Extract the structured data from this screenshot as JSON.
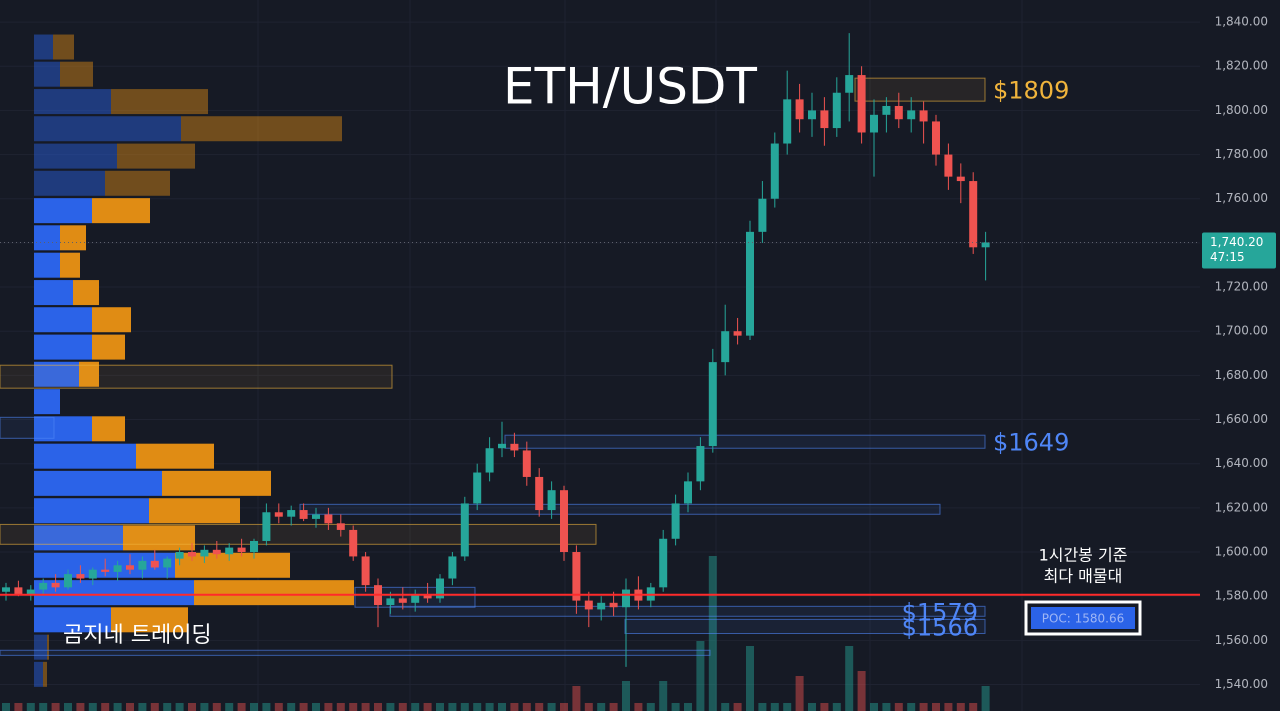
{
  "chart_data": {
    "type": "candlestick",
    "title": "ETH/USDT",
    "ylim": [
      1528,
      1850
    ],
    "yticks": [
      {
        "value": 1540,
        "label": "1,540.00"
      },
      {
        "value": 1560,
        "label": "1,560.00"
      },
      {
        "value": 1580,
        "label": "1,580.00"
      },
      {
        "value": 1600,
        "label": "1,600.00"
      },
      {
        "value": 1620,
        "label": "1,620.00"
      },
      {
        "value": 1640,
        "label": "1,640.00"
      },
      {
        "value": 1660,
        "label": "1,660.00"
      },
      {
        "value": 1680,
        "label": "1,680.00"
      },
      {
        "value": 1700,
        "label": "1,700.00"
      },
      {
        "value": 1720,
        "label": "1,720.00"
      },
      {
        "value": 1740,
        "label": "1,740.00"
      },
      {
        "value": 1760,
        "label": "1,760.00"
      },
      {
        "value": 1780,
        "label": "1,780.00"
      },
      {
        "value": 1800,
        "label": "1,800.00"
      },
      {
        "value": 1820,
        "label": "1,820.00"
      },
      {
        "value": 1840,
        "label": "1,840.00"
      }
    ],
    "grid": true,
    "up_color": "#26a69a",
    "down_color": "#ef5350",
    "ohlc": [
      [
        1582,
        1586,
        1578,
        1584
      ],
      [
        1584,
        1587,
        1580,
        1581
      ],
      [
        1581,
        1585,
        1578,
        1583
      ],
      [
        1583,
        1588,
        1581,
        1586
      ],
      [
        1586,
        1590,
        1582,
        1584
      ],
      [
        1584,
        1592,
        1583,
        1590
      ],
      [
        1590,
        1594,
        1586,
        1588
      ],
      [
        1588,
        1593,
        1585,
        1592
      ],
      [
        1592,
        1597,
        1589,
        1591
      ],
      [
        1591,
        1596,
        1587,
        1594
      ],
      [
        1594,
        1599,
        1590,
        1592
      ],
      [
        1592,
        1598,
        1588,
        1596
      ],
      [
        1596,
        1601,
        1592,
        1593
      ],
      [
        1593,
        1598,
        1588,
        1597
      ],
      [
        1597,
        1602,
        1594,
        1600
      ],
      [
        1600,
        1604,
        1596,
        1598
      ],
      [
        1598,
        1603,
        1595,
        1601
      ],
      [
        1601,
        1605,
        1597,
        1599
      ],
      [
        1599,
        1604,
        1596,
        1602
      ],
      [
        1602,
        1606,
        1598,
        1600
      ],
      [
        1600,
        1606,
        1597,
        1605
      ],
      [
        1605,
        1622,
        1603,
        1618
      ],
      [
        1618,
        1622,
        1613,
        1616
      ],
      [
        1616,
        1621,
        1612,
        1619
      ],
      [
        1619,
        1622,
        1614,
        1615
      ],
      [
        1615,
        1620,
        1611,
        1617
      ],
      [
        1617,
        1620,
        1610,
        1613
      ],
      [
        1613,
        1617,
        1607,
        1610
      ],
      [
        1610,
        1612,
        1596,
        1598
      ],
      [
        1598,
        1600,
        1582,
        1585
      ],
      [
        1585,
        1588,
        1566,
        1576
      ],
      [
        1576,
        1582,
        1572,
        1579
      ],
      [
        1579,
        1584,
        1574,
        1577
      ],
      [
        1577,
        1583,
        1573,
        1581
      ],
      [
        1581,
        1586,
        1577,
        1579
      ],
      [
        1579,
        1590,
        1577,
        1588
      ],
      [
        1588,
        1600,
        1585,
        1598
      ],
      [
        1598,
        1625,
        1596,
        1622
      ],
      [
        1622,
        1640,
        1619,
        1636
      ],
      [
        1636,
        1652,
        1632,
        1647
      ],
      [
        1647,
        1659,
        1643,
        1649
      ],
      [
        1649,
        1654,
        1643,
        1646
      ],
      [
        1646,
        1650,
        1630,
        1634
      ],
      [
        1634,
        1638,
        1616,
        1619
      ],
      [
        1619,
        1632,
        1615,
        1628
      ],
      [
        1628,
        1630,
        1596,
        1600
      ],
      [
        1600,
        1603,
        1572,
        1578
      ],
      [
        1578,
        1582,
        1566,
        1574
      ],
      [
        1574,
        1580,
        1569,
        1577
      ],
      [
        1577,
        1582,
        1571,
        1575
      ],
      [
        1575,
        1588,
        1548,
        1583
      ],
      [
        1583,
        1589,
        1574,
        1578
      ],
      [
        1578,
        1586,
        1575,
        1584
      ],
      [
        1584,
        1610,
        1582,
        1606
      ],
      [
        1606,
        1626,
        1603,
        1622
      ],
      [
        1622,
        1636,
        1618,
        1632
      ],
      [
        1632,
        1652,
        1628,
        1648
      ],
      [
        1648,
        1692,
        1645,
        1686
      ],
      [
        1686,
        1712,
        1680,
        1700
      ],
      [
        1700,
        1706,
        1694,
        1698
      ],
      [
        1698,
        1750,
        1696,
        1745
      ],
      [
        1745,
        1768,
        1740,
        1760
      ],
      [
        1760,
        1790,
        1756,
        1785
      ],
      [
        1785,
        1818,
        1780,
        1805
      ],
      [
        1805,
        1812,
        1790,
        1796
      ],
      [
        1796,
        1808,
        1788,
        1800
      ],
      [
        1800,
        1806,
        1784,
        1792
      ],
      [
        1792,
        1815,
        1788,
        1808
      ],
      [
        1808,
        1835,
        1795,
        1816
      ],
      [
        1816,
        1820,
        1785,
        1790
      ],
      [
        1790,
        1805,
        1770,
        1798
      ],
      [
        1798,
        1806,
        1790,
        1802
      ],
      [
        1802,
        1808,
        1792,
        1796
      ],
      [
        1796,
        1806,
        1790,
        1800
      ],
      [
        1800,
        1804,
        1785,
        1795
      ],
      [
        1795,
        1798,
        1775,
        1780
      ],
      [
        1780,
        1785,
        1764,
        1770
      ],
      [
        1770,
        1776,
        1758,
        1768
      ],
      [
        1768,
        1772,
        1735,
        1738
      ],
      [
        1738,
        1745,
        1723,
        1740.2
      ]
    ],
    "volume": [
      8,
      8,
      8,
      8,
      8,
      8,
      8,
      8,
      8,
      8,
      8,
      8,
      8,
      8,
      8,
      8,
      8,
      8,
      8,
      8,
      8,
      8,
      8,
      8,
      8,
      8,
      8,
      8,
      8,
      8,
      8,
      8,
      8,
      8,
      8,
      8,
      8,
      8,
      8,
      8,
      8,
      8,
      8,
      8,
      8,
      8,
      25,
      8,
      8,
      8,
      30,
      8,
      8,
      30,
      8,
      8,
      70,
      155,
      8,
      8,
      65,
      8,
      8,
      8,
      35,
      8,
      8,
      8,
      65,
      40,
      8,
      8,
      8,
      8,
      8,
      8,
      8,
      8,
      8,
      25
    ],
    "volume_profile": {
      "prices": [
        1828.7,
        1816.4,
        1804.0,
        1791.7,
        1779.3,
        1767.0,
        1754.6,
        1742.3,
        1729.9,
        1717.5,
        1705.2,
        1692.8,
        1680.5,
        1668.1,
        1655.8,
        1643.4,
        1631.1,
        1618.7,
        1606.4,
        1594.0,
        1581.6,
        1569.3,
        1556.9,
        1544.6
      ],
      "buy": [
        19,
        26,
        77,
        147,
        83,
        71,
        58,
        26,
        26,
        39,
        58,
        58,
        45,
        26,
        58,
        102,
        128,
        115,
        89,
        141,
        160,
        77,
        13,
        9
      ],
      "sell": [
        21,
        33,
        97,
        161,
        78,
        65,
        58,
        26,
        20,
        26,
        39,
        33,
        20,
        0,
        33,
        78,
        109,
        91,
        72,
        115,
        160,
        77,
        2,
        4
      ],
      "buy_color": "#2b63e8",
      "sell_color": "#e08c14",
      "value_area": [
        1569,
        1755
      ]
    },
    "zones": [
      {
        "label": "$1809",
        "bottom": 1804.2,
        "top": 1814.6,
        "color": "#f0b43c"
      },
      {
        "label": "$1649",
        "bottom": 1647,
        "top": 1652.9,
        "color": "#4f86f7"
      },
      {
        "label": "$1579",
        "bottom": 1570.9,
        "top": 1575.4,
        "color": "#4f86f7"
      },
      {
        "label": "$1566",
        "bottom": 1563.1,
        "top": 1569.5,
        "color": "#4f86f7"
      },
      {
        "bottom": 1674.2,
        "top": 1684.6,
        "color": "#f0b43c"
      },
      {
        "bottom": 1651.5,
        "top": 1661,
        "color": "#4f86f7"
      },
      {
        "bottom": 1617.1,
        "top": 1621.6,
        "color": "#4f86f7"
      },
      {
        "bottom": 1603.5,
        "top": 1612.5,
        "color": "#f0b43c"
      },
      {
        "bottom": 1575,
        "top": 1584,
        "color": "#4f86f7"
      },
      {
        "bottom": 1553.2,
        "top": 1555.5,
        "color": "#4f86f7"
      }
    ],
    "poc": {
      "value": 1580.66,
      "label": "POC: 1580.66",
      "color": "#ff2a2a"
    },
    "annotation": [
      "1시간봉 기준",
      "최다 매물대"
    ],
    "watermark": "곰지네 트레이딩",
    "last_price": {
      "value": 1740.2,
      "label": "1,740.20",
      "countdown": "47:15"
    }
  }
}
